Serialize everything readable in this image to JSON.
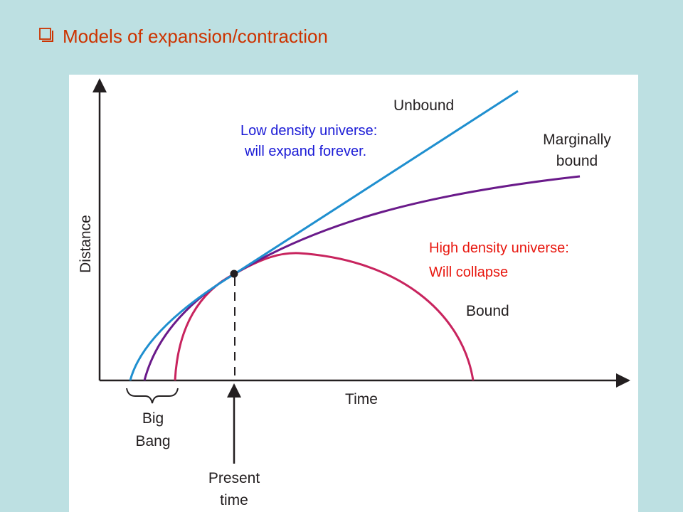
{
  "title": "Models of expansion/contraction",
  "diagram": {
    "y_axis_label": "Distance",
    "x_axis_label": "Time",
    "curves": {
      "unbound": "Unbound",
      "marginally_bound": [
        "Marginally",
        "bound"
      ],
      "bound": "Bound"
    },
    "big_bang": [
      "Big",
      "Bang"
    ],
    "present_time": [
      "Present",
      "time"
    ],
    "low_density": [
      "Low density universe:",
      "will expand forever."
    ],
    "high_density": [
      "High density universe:",
      "Will collapse"
    ]
  }
}
